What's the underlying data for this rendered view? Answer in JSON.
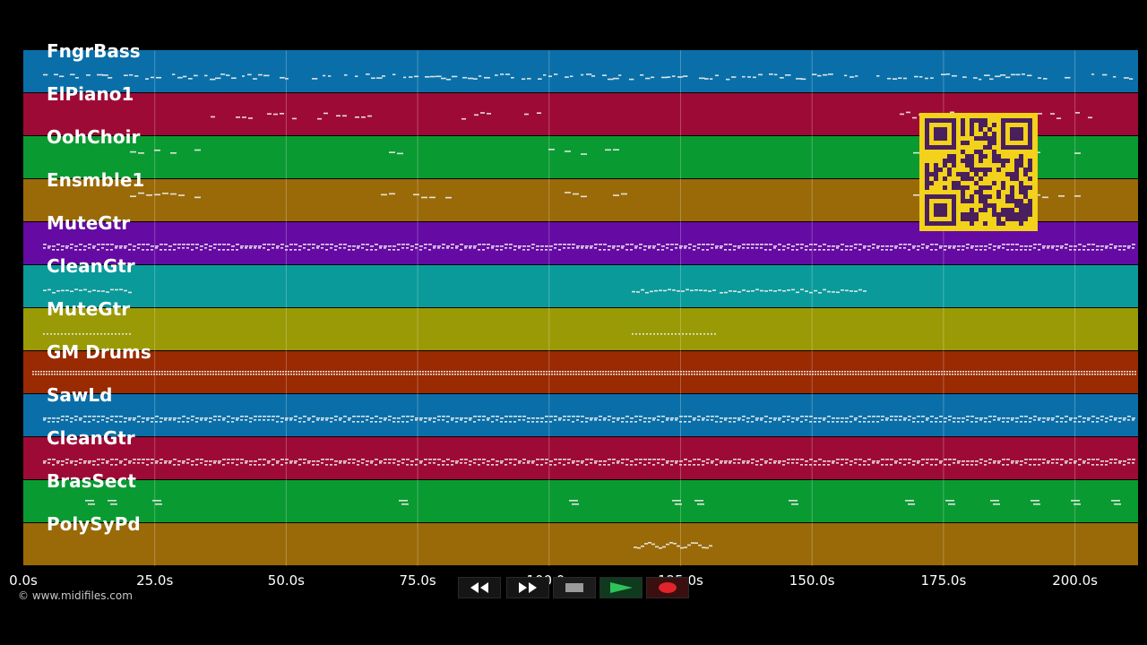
{
  "copyright": "© www.midifiles.com",
  "tracks": [
    {
      "name": "FngrBass",
      "color": "#0a6fa8",
      "pattern": "bass"
    },
    {
      "name": "ElPiano1",
      "color": "#9e0a36",
      "pattern": "sparse-high"
    },
    {
      "name": "OohChoir",
      "color": "#0a9a32",
      "pattern": "sparse"
    },
    {
      "name": "Ensmble1",
      "color": "#9a6a08",
      "pattern": "sparse"
    },
    {
      "name": "MuteGtr",
      "color": "#650aa2",
      "pattern": "dense"
    },
    {
      "name": "CleanGtr",
      "color": "#0a9a9a",
      "pattern": "sparse-low"
    },
    {
      "name": "MuteGtr",
      "color": "#9a9a06",
      "pattern": "faint"
    },
    {
      "name": "GM Drums",
      "color": "#9a2a02",
      "pattern": "drums"
    },
    {
      "name": "SawLd",
      "color": "#0a6fa8",
      "pattern": "dense"
    },
    {
      "name": "CleanGtr",
      "color": "#9e0a36",
      "pattern": "dense"
    },
    {
      "name": "BrasSect",
      "color": "#0a9a32",
      "pattern": "hits"
    },
    {
      "name": "PolySyPd",
      "color": "#9a6a08",
      "pattern": "pad"
    }
  ],
  "timeline": {
    "ticks": [
      "0.0s",
      "25.0s",
      "50.0s",
      "75.0s",
      "100.0s",
      "125.0s",
      "150.0s",
      "175.0s",
      "200.0s"
    ],
    "tick_values": [
      0,
      25,
      50,
      75,
      100,
      125,
      150,
      175,
      200
    ],
    "max_seconds": 212
  },
  "transport": {
    "rewind_icon": "rewind-icon",
    "forward_icon": "fast-forward-icon",
    "stop_icon": "stop-icon",
    "play_icon": "play-icon",
    "record_icon": "record-icon"
  },
  "qr_code": {
    "color": "#f2d21a",
    "ink": "#4a1f5e"
  }
}
